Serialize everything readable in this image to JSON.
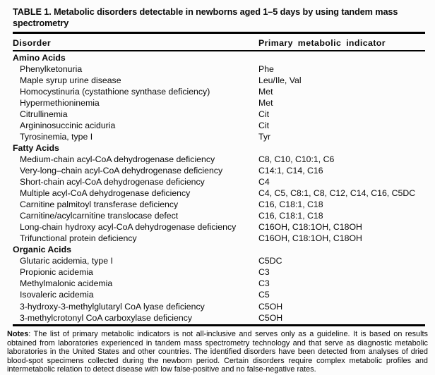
{
  "title": "TABLE 1. Metabolic disorders detectable in newborns aged 1–5 days by using tandem mass spectrometry",
  "columns": {
    "disorder": "Disorder",
    "indicator": "Primary metabolic indicator"
  },
  "sections": [
    {
      "name": "Amino Acids",
      "rows": [
        {
          "disorder": "Phenylketonuria",
          "indicator": "Phe"
        },
        {
          "disorder": "Maple syrup urine disease",
          "indicator": "Leu/Ile, Val"
        },
        {
          "disorder": "Homocystinuria (cystathione synthase deficiency)",
          "indicator": "Met"
        },
        {
          "disorder": "Hypermethioninemia",
          "indicator": "Met"
        },
        {
          "disorder": "Citrullinemia",
          "indicator": "Cit"
        },
        {
          "disorder": "Argininosuccinic aciduria",
          "indicator": "Cit"
        },
        {
          "disorder": "Tyrosinemia, type I",
          "indicator": "Tyr"
        }
      ]
    },
    {
      "name": "Fatty Acids",
      "rows": [
        {
          "disorder": "Medium-chain acyl-CoA dehydrogenase deficiency",
          "indicator": "C8, C10, C10:1, C6"
        },
        {
          "disorder": "Very-long–chain acyl-CoA dehydrogenase deficiency",
          "indicator": "C14:1, C14, C16"
        },
        {
          "disorder": "Short-chain acyl-CoA dehydrogenase deficiency",
          "indicator": "C4"
        },
        {
          "disorder": "Multiple acyl-CoA dehydrogenase deficiency",
          "indicator": "C4, C5, C8:1, C8, C12, C14, C16, C5DC"
        },
        {
          "disorder": "Carnitine palmitoyl transferase deficiency",
          "indicator": "C16, C18:1, C18"
        },
        {
          "disorder": "Carnitine/acylcarnitine translocase defect",
          "indicator": "C16, C18:1, C18"
        },
        {
          "disorder": "Long-chain hydroxy acyl-CoA dehydrogenase deficiency",
          "indicator": "C16OH, C18:1OH, C18OH"
        },
        {
          "disorder": "Trifunctional protein deficiency",
          "indicator": "C16OH, C18:1OH, C18OH"
        }
      ]
    },
    {
      "name": "Organic Acids",
      "rows": [
        {
          "disorder": "Glutaric acidemia, type I",
          "indicator": "C5DC"
        },
        {
          "disorder": "Propionic acidemia",
          "indicator": "C3"
        },
        {
          "disorder": "Methylmalonic acidemia",
          "indicator": "C3"
        },
        {
          "disorder": "Isovaleric acidemia",
          "indicator": "C5"
        },
        {
          "disorder": "3-hydroxy-3-methylglutaryl CoA lyase deficiency",
          "indicator": "C5OH"
        },
        {
          "disorder": "3-methylcrotonyl CoA carboxylase deficiency",
          "indicator": "C5OH"
        }
      ]
    }
  ],
  "notes": {
    "label": "Notes",
    "text": ": The list of primary metabolic indicators is not all-inclusive and serves only as a guideline. It is based on results obtained from laboratories experienced in tandem mass spectrometry technology and that serve as diagnostic metabolic laboratories in the United States and other countries. The identified disorders have been detected from analyses of dried blood-spot specimens collected during the newborn period. Certain disorders require complex metabolic profiles and intermetabolic relation to detect disease with low false-positive and no false-negative rates."
  }
}
